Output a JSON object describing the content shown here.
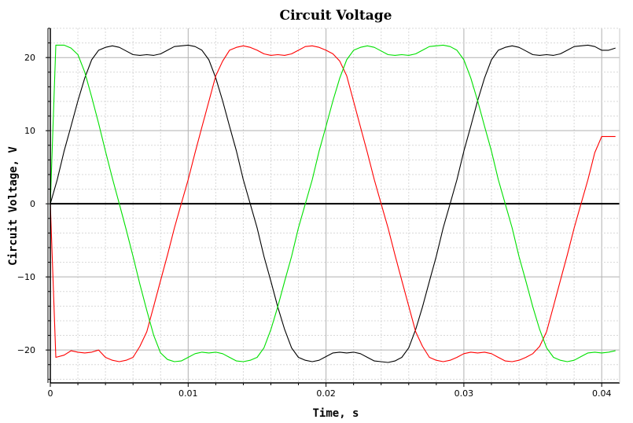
{
  "chart_data": {
    "type": "line",
    "title": "Circuit Voltage",
    "xlabel": "Time, s",
    "ylabel": "Circuit Voltage, V",
    "xlim": [
      0,
      0.0413
    ],
    "ylim": [
      -24.5,
      24
    ],
    "x_ticks": [
      0,
      0.01,
      0.02,
      0.03,
      0.04
    ],
    "x_tick_labels": [
      "0",
      "0.01",
      "0.02",
      "0.03",
      "0.04"
    ],
    "y_ticks": [
      -20,
      -10,
      0,
      10,
      20
    ],
    "y_tick_labels": [
      "−20",
      "−10",
      "0",
      "10",
      "20"
    ],
    "grid": true,
    "series": [
      {
        "color": "#000000",
        "x": [
          0,
          0.0005,
          0.001,
          0.0015,
          0.002,
          0.0025,
          0.003,
          0.0035,
          0.004,
          0.0045,
          0.005,
          0.0055,
          0.006,
          0.0065,
          0.007,
          0.0075,
          0.008,
          0.0085,
          0.009,
          0.0095,
          0.01,
          0.0105,
          0.011,
          0.0115,
          0.012,
          0.0125,
          0.013,
          0.0135,
          0.014,
          0.0145,
          0.015,
          0.0155,
          0.016,
          0.0165,
          0.017,
          0.0175,
          0.018,
          0.0185,
          0.019,
          0.0195,
          0.02,
          0.0205,
          0.021,
          0.0215,
          0.022,
          0.0225,
          0.023,
          0.0235,
          0.024,
          0.0245,
          0.025,
          0.0255,
          0.026,
          0.0265,
          0.027,
          0.0275,
          0.028,
          0.0285,
          0.029,
          0.0295,
          0.03,
          0.0305,
          0.031,
          0.0315,
          0.032,
          0.0325,
          0.033,
          0.0335,
          0.034,
          0.0345,
          0.035,
          0.0355,
          0.036,
          0.0365,
          0.037,
          0.0375,
          0.038,
          0.0385,
          0.039,
          0.0395,
          0.04,
          0.0405,
          0.041
        ],
        "values": [
          0,
          3.3,
          7.2,
          10.6,
          14.1,
          17.2,
          19.7,
          21.0,
          21.4,
          21.6,
          21.4,
          20.9,
          20.4,
          20.3,
          20.4,
          20.3,
          20.5,
          21.0,
          21.5,
          21.6,
          21.7,
          21.5,
          21.0,
          19.7,
          17.2,
          14.1,
          10.6,
          7.2,
          3.3,
          0,
          -3.3,
          -7.2,
          -10.6,
          -14.1,
          -17.2,
          -19.7,
          -21.0,
          -21.4,
          -21.6,
          -21.4,
          -20.9,
          -20.4,
          -20.3,
          -20.4,
          -20.3,
          -20.5,
          -21.0,
          -21.5,
          -21.6,
          -21.7,
          -21.5,
          -21.0,
          -19.7,
          -17.2,
          -14.1,
          -10.6,
          -7.2,
          -3.3,
          0,
          3.3,
          7.2,
          10.6,
          14.1,
          17.2,
          19.7,
          21.0,
          21.4,
          21.6,
          21.4,
          20.9,
          20.4,
          20.3,
          20.4,
          20.3,
          20.5,
          21.0,
          21.5,
          21.6,
          21.7,
          21.5,
          21.0,
          21.0,
          21.3
        ]
      },
      {
        "color": "#ff0000",
        "x": [
          0,
          0.0004,
          0.001,
          0.0015,
          0.002,
          0.0025,
          0.003,
          0.0035,
          0.004,
          0.0045,
          0.005,
          0.0055,
          0.006,
          0.0065,
          0.007,
          0.0075,
          0.008,
          0.0085,
          0.009,
          0.0095,
          0.01,
          0.0105,
          0.011,
          0.0115,
          0.012,
          0.0125,
          0.013,
          0.0135,
          0.014,
          0.0145,
          0.015,
          0.0155,
          0.016,
          0.0165,
          0.017,
          0.0175,
          0.018,
          0.0185,
          0.019,
          0.0195,
          0.02,
          0.0205,
          0.021,
          0.0215,
          0.022,
          0.0225,
          0.023,
          0.0235,
          0.024,
          0.0245,
          0.025,
          0.0255,
          0.026,
          0.0265,
          0.027,
          0.0275,
          0.028,
          0.0285,
          0.029,
          0.0295,
          0.03,
          0.0305,
          0.031,
          0.0315,
          0.032,
          0.0325,
          0.033,
          0.0335,
          0.034,
          0.0345,
          0.035,
          0.0355,
          0.036,
          0.0365,
          0.037,
          0.0375,
          0.038,
          0.0385,
          0.039,
          0.0395,
          0.04,
          0.0405,
          0.041
        ],
        "values": [
          0,
          -21.0,
          -20.7,
          -20.1,
          -20.3,
          -20.4,
          -20.3,
          -20.0,
          -21.0,
          -21.4,
          -21.6,
          -21.4,
          -21.0,
          -19.5,
          -17.5,
          -14.0,
          -10.5,
          -7.0,
          -3.3,
          0,
          3.3,
          7.0,
          10.5,
          14.0,
          17.5,
          19.5,
          21.0,
          21.4,
          21.6,
          21.4,
          21.0,
          20.5,
          20.3,
          20.4,
          20.3,
          20.5,
          21.0,
          21.5,
          21.6,
          21.4,
          21.0,
          20.5,
          19.5,
          17.5,
          14.0,
          10.5,
          7.0,
          3.3,
          0,
          -3.3,
          -7.0,
          -10.5,
          -14.0,
          -17.5,
          -19.5,
          -21.0,
          -21.4,
          -21.6,
          -21.4,
          -21.0,
          -20.5,
          -20.3,
          -20.4,
          -20.3,
          -20.5,
          -21.0,
          -21.5,
          -21.6,
          -21.4,
          -21.0,
          -20.5,
          -19.5,
          -17.5,
          -14.0,
          -10.5,
          -7.0,
          -3.3,
          0,
          3.3,
          7.0,
          9.2,
          9.2,
          9.2
        ]
      },
      {
        "color": "#00e000",
        "x": [
          0,
          0.0004,
          0.001,
          0.0015,
          0.002,
          0.0025,
          0.003,
          0.0035,
          0.004,
          0.0045,
          0.005,
          0.0055,
          0.006,
          0.0065,
          0.007,
          0.0075,
          0.008,
          0.0085,
          0.009,
          0.0095,
          0.01,
          0.0105,
          0.011,
          0.0115,
          0.012,
          0.0125,
          0.013,
          0.0135,
          0.014,
          0.0145,
          0.015,
          0.0155,
          0.016,
          0.0165,
          0.017,
          0.0175,
          0.018,
          0.0185,
          0.019,
          0.0195,
          0.02,
          0.0205,
          0.021,
          0.0215,
          0.022,
          0.0225,
          0.023,
          0.0235,
          0.024,
          0.0245,
          0.025,
          0.0255,
          0.026,
          0.0265,
          0.027,
          0.0275,
          0.028,
          0.0285,
          0.029,
          0.0295,
          0.03,
          0.0305,
          0.031,
          0.0315,
          0.032,
          0.0325,
          0.033,
          0.0335,
          0.034,
          0.0345,
          0.035,
          0.0355,
          0.036,
          0.0365,
          0.037,
          0.0375,
          0.038,
          0.0385,
          0.039,
          0.0395,
          0.04,
          0.0405,
          0.041
        ],
        "values": [
          0,
          21.7,
          21.7,
          21.3,
          20.4,
          18.0,
          14.6,
          11.0,
          7.2,
          3.5,
          0,
          -3.5,
          -7.2,
          -11.0,
          -14.6,
          -18.0,
          -20.4,
          -21.3,
          -21.6,
          -21.5,
          -21.0,
          -20.5,
          -20.3,
          -20.4,
          -20.3,
          -20.5,
          -21.0,
          -21.5,
          -21.6,
          -21.4,
          -21.0,
          -19.7,
          -17.2,
          -14.1,
          -10.6,
          -7.2,
          -3.3,
          0,
          3.3,
          7.2,
          10.6,
          14.1,
          17.2,
          19.7,
          21.0,
          21.4,
          21.6,
          21.4,
          20.9,
          20.4,
          20.3,
          20.4,
          20.3,
          20.5,
          21.0,
          21.5,
          21.6,
          21.7,
          21.5,
          21.0,
          19.7,
          17.2,
          14.1,
          10.6,
          7.2,
          3.3,
          0,
          -3.3,
          -7.2,
          -10.6,
          -14.1,
          -17.2,
          -19.7,
          -21.0,
          -21.4,
          -21.6,
          -21.4,
          -20.9,
          -20.4,
          -20.3,
          -20.4,
          -20.3,
          -20.1
        ]
      }
    ]
  }
}
